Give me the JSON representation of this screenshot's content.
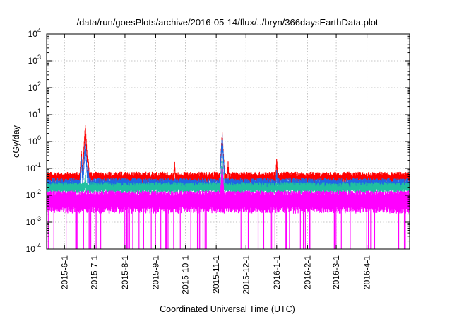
{
  "chart_data": {
    "type": "area",
    "title": "/data/run/goesPlots/archive/2016-05-14/flux/../bryn/366daysEarthData.plot",
    "xlabel": "Coordinated Universal Time (UTC)",
    "ylabel": "cGy/day",
    "x_range": [
      "2015-05-14",
      "2016-05-14"
    ],
    "ylim": [
      0.0001,
      10000
    ],
    "yscale": "log",
    "grid": true,
    "x_tick_labels": [
      "2015-6-1",
      "2015-7-1",
      "2015-8-1",
      "2015-9-1",
      "2015-10-1",
      "2015-11-1",
      "2015-12-1",
      "2016-1-1",
      "2016-2-1",
      "2016-3-1",
      "2016-4-1"
    ],
    "y_ticks": [
      {
        "base": "10",
        "exp": "-4"
      },
      {
        "base": "10",
        "exp": "-3"
      },
      {
        "base": "10",
        "exp": "-2"
      },
      {
        "base": "10",
        "exp": "-1"
      },
      {
        "base": "10",
        "exp": "0"
      },
      {
        "base": "10",
        "exp": "1"
      },
      {
        "base": "10",
        "exp": "2"
      },
      {
        "base": "10",
        "exp": "3"
      },
      {
        "base": "10",
        "exp": "4"
      }
    ],
    "series": [
      {
        "color": "#ff0000",
        "baseline": 0.06,
        "spikes": [
          [
            "2015-06-18",
            0.5
          ],
          [
            "2015-06-22",
            4.5
          ],
          [
            "2015-06-25",
            0.25
          ],
          [
            "2015-09-20",
            0.2
          ],
          [
            "2015-11-07",
            2.2
          ],
          [
            "2015-11-13",
            0.18
          ],
          [
            "2016-01-01",
            0.25
          ]
        ]
      },
      {
        "color": "#1f66e5",
        "baseline": 0.035,
        "spikes": [
          [
            "2015-06-18",
            0.3
          ],
          [
            "2015-06-22",
            1.2
          ],
          [
            "2015-06-25",
            0.12
          ],
          [
            "2015-11-07",
            1.8
          ],
          [
            "2016-01-01",
            0.1
          ]
        ]
      },
      {
        "color": "#20c0a0",
        "baseline": 0.025,
        "spikes": [
          [
            "2015-06-22",
            0.08
          ],
          [
            "2015-11-07",
            0.3
          ]
        ]
      },
      {
        "color": "#ff00ff",
        "baseline": 0.012,
        "low": 0.003,
        "dropouts_to": 0.0001,
        "spikes": [
          [
            "2015-11-07",
            0.15
          ]
        ]
      }
    ]
  }
}
